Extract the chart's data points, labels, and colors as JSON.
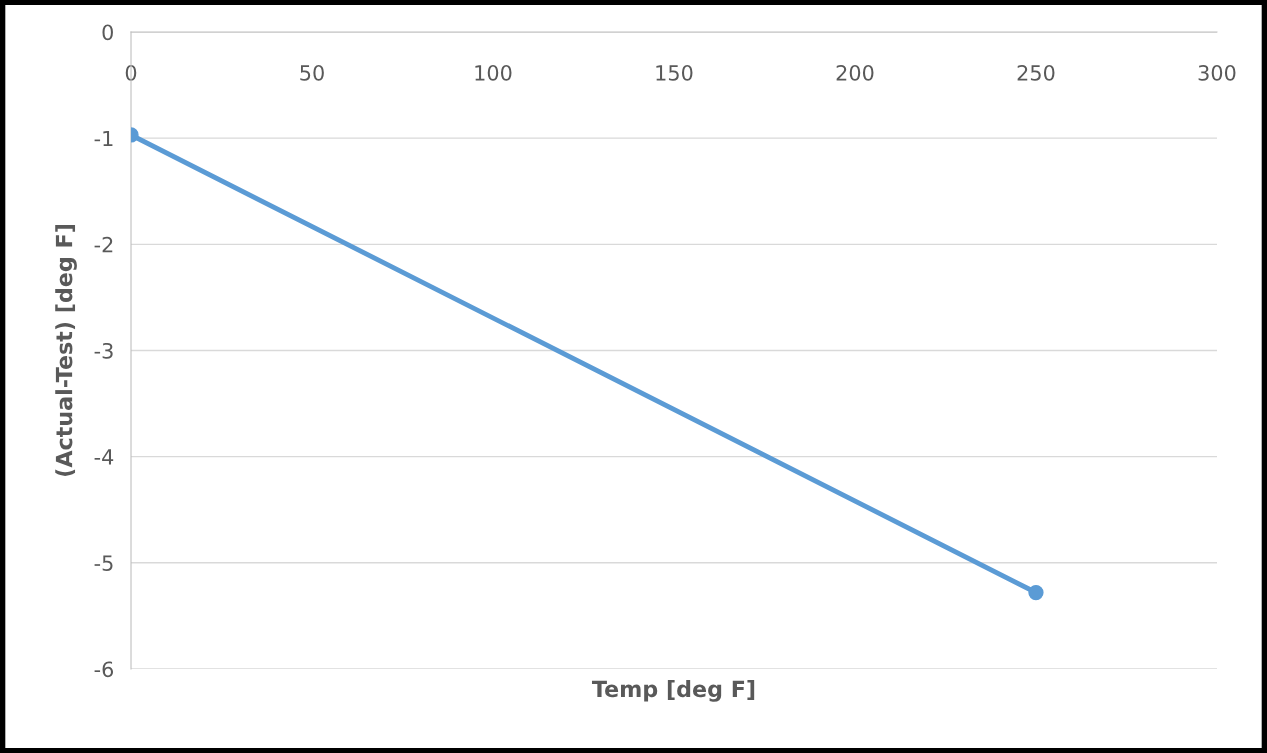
{
  "chart_data": {
    "type": "line",
    "xlabel": "Temp [deg F]",
    "ylabel": "(Actual-Test) [deg F]",
    "x": [
      0,
      250
    ],
    "series": [
      {
        "color": "#5b9bd5",
        "values": [
          -0.97,
          -5.28
        ]
      }
    ],
    "xlim": [
      0,
      300
    ],
    "xticks": [
      0,
      50,
      100,
      150,
      200,
      250,
      300
    ],
    "ylim": [
      -6,
      0
    ],
    "yticks": [
      -6,
      -5,
      -4,
      -3,
      -2,
      -1,
      0
    ],
    "grid": "y",
    "marker": "circle",
    "line_style": "solid"
  }
}
